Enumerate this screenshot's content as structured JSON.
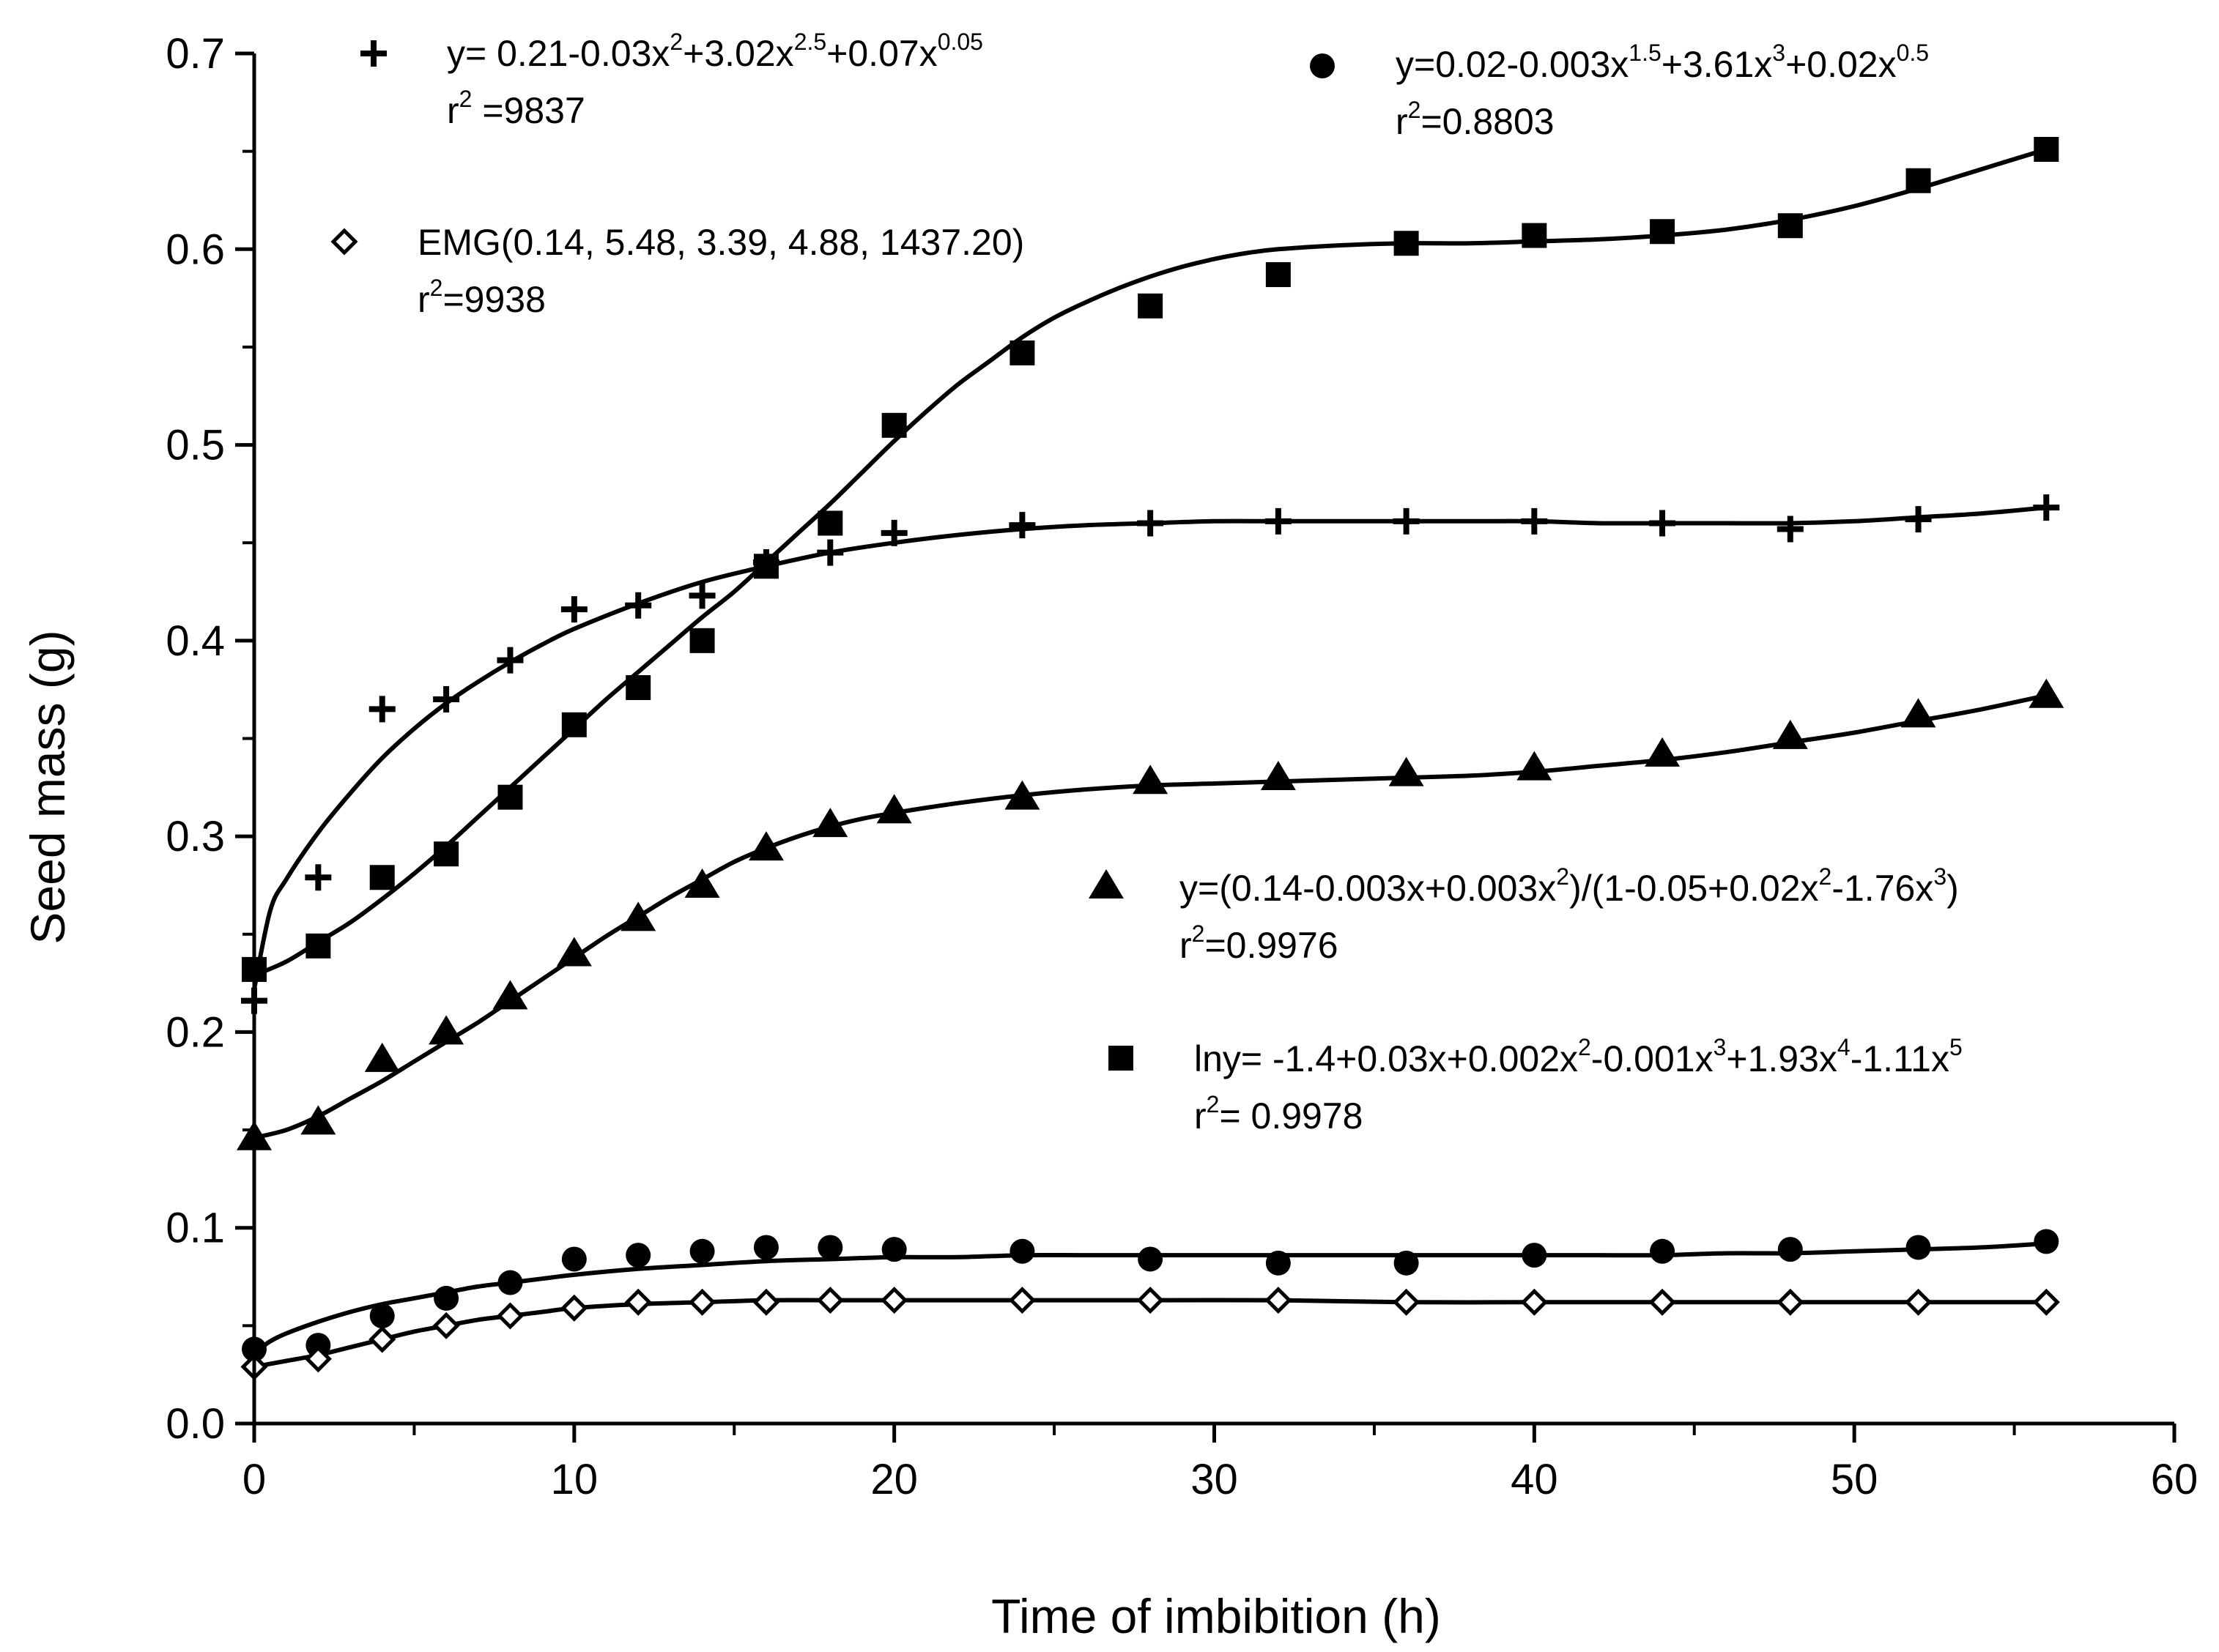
{
  "chart_data": {
    "type": "scatter",
    "xlabel": "Time of imbibition (h)",
    "ylabel": "Seed mass (g)",
    "xlim": [
      0,
      60
    ],
    "ylim": [
      0,
      0.7
    ],
    "xticks": [
      0,
      10,
      20,
      30,
      40,
      50,
      60
    ],
    "xtick_labels": [
      "0",
      "10",
      "20",
      "30",
      "40",
      "50",
      "60"
    ],
    "yticks": [
      0.0,
      0.1,
      0.2,
      0.3,
      0.4,
      0.5,
      0.6,
      0.7
    ],
    "ytick_labels": [
      "0.0",
      "0.1",
      "0.2",
      "0.3",
      "0.4",
      "0.5",
      "0.6",
      "0.7"
    ],
    "grid": false,
    "series": [
      {
        "name": "plus",
        "marker": "plus",
        "x": [
          0,
          2,
          4,
          6,
          8,
          10,
          12,
          14,
          16,
          18,
          20,
          24,
          28,
          32,
          36,
          40,
          44,
          48,
          52,
          56
        ],
        "y": [
          0.216,
          0.279,
          0.365,
          0.37,
          0.39,
          0.416,
          0.418,
          0.423,
          0.44,
          0.445,
          0.455,
          0.459,
          0.46,
          0.461,
          0.461,
          0.461,
          0.46,
          0.457,
          0.462,
          0.468
        ],
        "fit_x": [
          0,
          0.5,
          1,
          2,
          3,
          4,
          5,
          6,
          7,
          8,
          9,
          10,
          12,
          14,
          16,
          18,
          20,
          22,
          24,
          26,
          28,
          30,
          32,
          34,
          36,
          38,
          40,
          42,
          44,
          46,
          48,
          50,
          52,
          54,
          56
        ],
        "fit_y": [
          0.222,
          0.262,
          0.278,
          0.302,
          0.322,
          0.34,
          0.355,
          0.368,
          0.379,
          0.389,
          0.398,
          0.406,
          0.419,
          0.43,
          0.438,
          0.445,
          0.45,
          0.454,
          0.457,
          0.459,
          0.46,
          0.461,
          0.461,
          0.461,
          0.461,
          0.461,
          0.461,
          0.46,
          0.46,
          0.46,
          0.46,
          0.461,
          0.463,
          0.465,
          0.468
        ],
        "equation_parts": [
          {
            "t": "y= 0.21-0.03x"
          },
          {
            "t": "2",
            "sup": true
          },
          {
            "t": "+3.02x"
          },
          {
            "t": "2.5",
            "sup": true
          },
          {
            "t": "+0.07x"
          },
          {
            "t": "0.05",
            "sup": true
          }
        ],
        "r2_parts": [
          {
            "t": "r"
          },
          {
            "t": "2",
            "sup": true
          },
          {
            "t": " =9837"
          }
        ]
      },
      {
        "name": "circle",
        "marker": "circle",
        "x": [
          0,
          2,
          4,
          6,
          8,
          10,
          12,
          14,
          16,
          18,
          20,
          24,
          28,
          32,
          36,
          40,
          44,
          48,
          52,
          56
        ],
        "y": [
          0.038,
          0.04,
          0.055,
          0.064,
          0.072,
          0.084,
          0.086,
          0.088,
          0.09,
          0.09,
          0.089,
          0.088,
          0.084,
          0.082,
          0.082,
          0.086,
          0.088,
          0.089,
          0.09,
          0.093
        ],
        "fit_x": [
          0,
          0.5,
          1,
          2,
          3,
          4,
          5,
          6,
          7,
          8,
          9,
          10,
          12,
          14,
          16,
          18,
          20,
          22,
          24,
          26,
          28,
          30,
          32,
          34,
          36,
          38,
          40,
          42,
          44,
          46,
          48,
          50,
          52,
          54,
          56
        ],
        "fit_y": [
          0.036,
          0.042,
          0.046,
          0.052,
          0.057,
          0.061,
          0.064,
          0.067,
          0.07,
          0.072,
          0.074,
          0.076,
          0.079,
          0.081,
          0.083,
          0.084,
          0.085,
          0.085,
          0.086,
          0.086,
          0.086,
          0.086,
          0.086,
          0.086,
          0.086,
          0.086,
          0.086,
          0.086,
          0.086,
          0.087,
          0.087,
          0.088,
          0.089,
          0.09,
          0.092
        ],
        "equation_parts": [
          {
            "t": "y=0.02-0.003x"
          },
          {
            "t": "1.5",
            "sup": true
          },
          {
            "t": "+3.61x"
          },
          {
            "t": "3",
            "sup": true
          },
          {
            "t": "+0.02x"
          },
          {
            "t": "0.5",
            "sup": true
          }
        ],
        "r2_parts": [
          {
            "t": "r"
          },
          {
            "t": "2",
            "sup": true
          },
          {
            "t": "=0.8803"
          }
        ]
      },
      {
        "name": "diamond",
        "marker": "diamond",
        "x": [
          0,
          2,
          4,
          6,
          8,
          10,
          12,
          14,
          16,
          18,
          20,
          24,
          28,
          32,
          36,
          40,
          44,
          48,
          52,
          56
        ],
        "y": [
          0.029,
          0.033,
          0.043,
          0.05,
          0.055,
          0.059,
          0.062,
          0.062,
          0.062,
          0.063,
          0.063,
          0.063,
          0.063,
          0.063,
          0.062,
          0.062,
          0.062,
          0.062,
          0.062,
          0.062
        ],
        "fit_x": [
          0,
          1,
          2,
          3,
          4,
          5,
          6,
          7,
          8,
          9,
          10,
          12,
          14,
          16,
          18,
          20,
          24,
          28,
          32,
          36,
          40,
          44,
          48,
          52,
          56
        ],
        "fit_y": [
          0.029,
          0.032,
          0.035,
          0.039,
          0.043,
          0.047,
          0.05,
          0.053,
          0.055,
          0.057,
          0.059,
          0.061,
          0.062,
          0.063,
          0.063,
          0.063,
          0.063,
          0.063,
          0.063,
          0.062,
          0.062,
          0.062,
          0.062,
          0.062,
          0.062
        ],
        "equation_parts": [
          {
            "t": "EMG(0.14, 5.48, 3.39, 4.88, 1437.20)"
          }
        ],
        "r2_parts": [
          {
            "t": "r"
          },
          {
            "t": "2",
            "sup": true
          },
          {
            "t": "=9938"
          }
        ]
      },
      {
        "name": "triangle",
        "marker": "triangle",
        "x": [
          0,
          2,
          4,
          6,
          8,
          10,
          12,
          14,
          16,
          18,
          20,
          24,
          28,
          32,
          36,
          40,
          44,
          48,
          52,
          56
        ],
        "y": [
          0.146,
          0.154,
          0.186,
          0.2,
          0.218,
          0.24,
          0.258,
          0.275,
          0.294,
          0.306,
          0.313,
          0.32,
          0.328,
          0.33,
          0.332,
          0.335,
          0.342,
          0.351,
          0.362,
          0.372
        ],
        "fit_x": [
          0,
          1,
          2,
          3,
          4,
          5,
          6,
          7,
          8,
          9,
          10,
          11,
          12,
          13,
          14,
          15,
          16,
          17,
          18,
          19,
          20,
          22,
          24,
          26,
          28,
          30,
          32,
          34,
          36,
          38,
          40,
          42,
          44,
          46,
          48,
          50,
          52,
          54,
          56
        ],
        "fit_y": [
          0.146,
          0.15,
          0.157,
          0.166,
          0.175,
          0.185,
          0.195,
          0.205,
          0.216,
          0.227,
          0.238,
          0.249,
          0.259,
          0.269,
          0.278,
          0.287,
          0.294,
          0.3,
          0.305,
          0.309,
          0.312,
          0.317,
          0.321,
          0.324,
          0.326,
          0.327,
          0.328,
          0.329,
          0.33,
          0.331,
          0.333,
          0.336,
          0.339,
          0.343,
          0.348,
          0.353,
          0.359,
          0.365,
          0.372
        ],
        "equation_parts": [
          {
            "t": "y=(0.14-0.003x+0.003x"
          },
          {
            "t": "2",
            "sup": true
          },
          {
            "t": ")/(1-0.05+0.02x"
          },
          {
            "t": "2",
            "sup": true
          },
          {
            "t": "-1.76x"
          },
          {
            "t": "3",
            "sup": true
          },
          {
            "t": ")"
          }
        ],
        "r2_parts": [
          {
            "t": "r"
          },
          {
            "t": "2",
            "sup": true
          },
          {
            "t": "=0.9976"
          }
        ]
      },
      {
        "name": "square",
        "marker": "square",
        "x": [
          0,
          2,
          4,
          6,
          8,
          10,
          12,
          14,
          16,
          18,
          20,
          24,
          28,
          32,
          36,
          40,
          44,
          48,
          52,
          56
        ],
        "y": [
          0.232,
          0.244,
          0.279,
          0.291,
          0.32,
          0.357,
          0.376,
          0.4,
          0.438,
          0.46,
          0.51,
          0.547,
          0.571,
          0.587,
          0.603,
          0.607,
          0.609,
          0.612,
          0.635,
          0.651
        ],
        "fit_x": [
          0,
          1,
          2,
          3,
          4,
          5,
          6,
          7,
          8,
          9,
          10,
          11,
          12,
          13,
          14,
          15,
          16,
          17,
          18,
          19,
          20,
          21,
          22,
          23,
          24,
          25,
          26,
          27,
          28,
          29,
          30,
          31,
          32,
          34,
          36,
          38,
          40,
          42,
          44,
          46,
          48,
          50,
          52,
          54,
          56
        ],
        "fit_y": [
          0.229,
          0.236,
          0.246,
          0.256,
          0.268,
          0.281,
          0.295,
          0.31,
          0.325,
          0.34,
          0.355,
          0.37,
          0.384,
          0.398,
          0.412,
          0.425,
          0.44,
          0.455,
          0.47,
          0.486,
          0.502,
          0.517,
          0.531,
          0.543,
          0.555,
          0.565,
          0.573,
          0.58,
          0.586,
          0.591,
          0.595,
          0.598,
          0.6,
          0.602,
          0.603,
          0.603,
          0.604,
          0.605,
          0.607,
          0.61,
          0.615,
          0.622,
          0.631,
          0.641,
          0.651
        ],
        "equation_parts": [
          {
            "t": "lny= -1.4+0.03x+0.002x"
          },
          {
            "t": "2",
            "sup": true
          },
          {
            "t": "-0.001x"
          },
          {
            "t": "3",
            "sup": true
          },
          {
            "t": "+1.93x"
          },
          {
            "t": "4",
            "sup": true
          },
          {
            "t": "-1.11x"
          },
          {
            "t": "5",
            "sup": true
          }
        ],
        "r2_parts": [
          {
            "t": "r"
          },
          {
            "t": "2",
            "sup": true
          },
          {
            "t": "= 0.9978"
          }
        ]
      }
    ]
  }
}
